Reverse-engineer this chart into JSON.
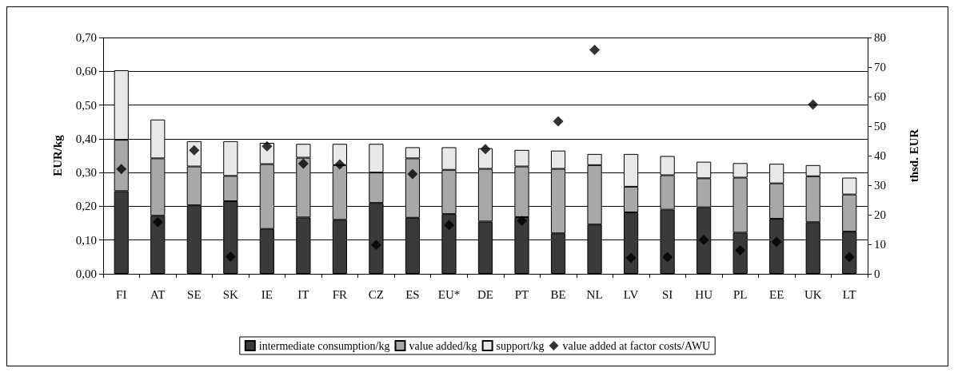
{
  "chart_data": {
    "type": "bar",
    "stacked": true,
    "ylabel": "EUR/kg",
    "y2label": "thsd. EUR",
    "categories": [
      "FI",
      "AT",
      "SE",
      "SK",
      "IE",
      "IT",
      "FR",
      "CZ",
      "ES",
      "EU*",
      "DE",
      "PT",
      "BE",
      "NL",
      "LV",
      "SI",
      "HU",
      "PL",
      "EE",
      "UK",
      "LT"
    ],
    "series": [
      {
        "name": "intermediate consumption/kg",
        "color": "#3a3a3a",
        "values": [
          0.245,
          0.172,
          0.203,
          0.215,
          0.133,
          0.167,
          0.16,
          0.21,
          0.166,
          0.177,
          0.155,
          0.168,
          0.12,
          0.146,
          0.182,
          0.19,
          0.197,
          0.122,
          0.163,
          0.153,
          0.125
        ]
      },
      {
        "name": "value added/kg",
        "color": "#a8a8a8",
        "values": [
          0.152,
          0.17,
          0.115,
          0.075,
          0.192,
          0.177,
          0.162,
          0.09,
          0.176,
          0.131,
          0.156,
          0.15,
          0.191,
          0.176,
          0.076,
          0.102,
          0.086,
          0.163,
          0.105,
          0.136,
          0.11
        ]
      },
      {
        "name": "support/kg",
        "color": "#e8e8e8",
        "values": [
          0.206,
          0.115,
          0.075,
          0.103,
          0.063,
          0.041,
          0.063,
          0.085,
          0.033,
          0.067,
          0.061,
          0.049,
          0.054,
          0.033,
          0.097,
          0.057,
          0.049,
          0.043,
          0.058,
          0.033,
          0.05
        ]
      },
      {
        "name": "value added at factor costs/AWU",
        "type": "scatter",
        "axis": "y2",
        "marker": "diamond",
        "color": "#000000",
        "values": [
          35.5,
          17.5,
          41.8,
          5.8,
          43.2,
          37.3,
          37,
          9.8,
          33.8,
          16.5,
          42.2,
          18,
          51.6,
          75.8,
          5.4,
          5.7,
          11.5,
          8,
          10.8,
          57.3,
          5.7
        ]
      }
    ],
    "ylim": [
      0,
      0.7
    ],
    "yticks": [
      {
        "value": 0,
        "label": "0,00"
      },
      {
        "value": 0.1,
        "label": "0,10"
      },
      {
        "value": 0.2,
        "label": "0,20"
      },
      {
        "value": 0.3,
        "label": "0,30"
      },
      {
        "value": 0.4,
        "label": "0,40"
      },
      {
        "value": 0.5,
        "label": "0,50"
      },
      {
        "value": 0.6,
        "label": "0,60"
      },
      {
        "value": 0.7,
        "label": "0,70"
      }
    ],
    "y2lim": [
      0,
      80
    ],
    "y2ticks": [
      0,
      10,
      20,
      30,
      40,
      50,
      60,
      70,
      80
    ],
    "grid": "y",
    "legend": "bottom"
  }
}
